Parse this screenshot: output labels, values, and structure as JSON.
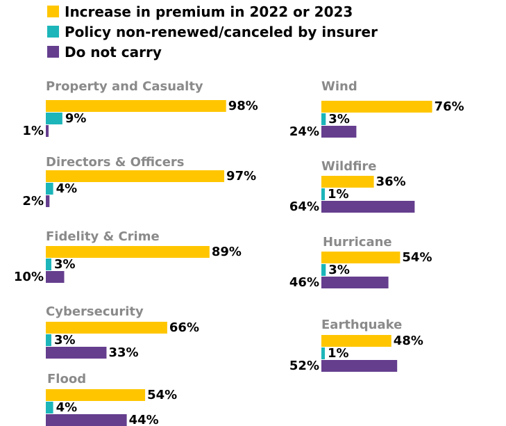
{
  "colors": {
    "increase": "#FFC600",
    "nonrenewed": "#1CB5B9",
    "donotcarry": "#653E8E",
    "title": "#8A8A8A",
    "text": "#000000"
  },
  "chart_data": {
    "type": "bar",
    "orientation": "horizontal",
    "xlim": [
      0,
      100
    ],
    "grid": false,
    "legend_position": "top-left",
    "series": [
      {
        "key": "increase",
        "name": "Increase in premium in 2022 or 2023"
      },
      {
        "key": "nonrenewed",
        "name": "Policy non-renewed/canceled by insurer"
      },
      {
        "key": "donotcarry",
        "name": "Do not carry"
      }
    ],
    "groups": [
      {
        "title": "Property and Casualty",
        "values": {
          "increase": 98,
          "nonrenewed": 9,
          "donotcarry": 1
        }
      },
      {
        "title": "Directors & Officers",
        "values": {
          "increase": 97,
          "nonrenewed": 4,
          "donotcarry": 2
        }
      },
      {
        "title": "Fidelity & Crime",
        "values": {
          "increase": 89,
          "nonrenewed": 3,
          "donotcarry": 10
        }
      },
      {
        "title": "Cybersecurity",
        "values": {
          "increase": 66,
          "nonrenewed": 3,
          "donotcarry": 33
        }
      },
      {
        "title": "Flood",
        "values": {
          "increase": 54,
          "nonrenewed": 4,
          "donotcarry": 44
        }
      },
      {
        "title": "Wind",
        "values": {
          "increase": 76,
          "nonrenewed": 3,
          "donotcarry": 24
        }
      },
      {
        "title": "Wildfire",
        "values": {
          "increase": 36,
          "nonrenewed": 1,
          "donotcarry": 64
        }
      },
      {
        "title": "Hurricane",
        "values": {
          "increase": 54,
          "nonrenewed": 3,
          "donotcarry": 46
        }
      },
      {
        "title": "Earthquake",
        "values": {
          "increase": 48,
          "nonrenewed": 1,
          "donotcarry": 52
        }
      }
    ]
  }
}
